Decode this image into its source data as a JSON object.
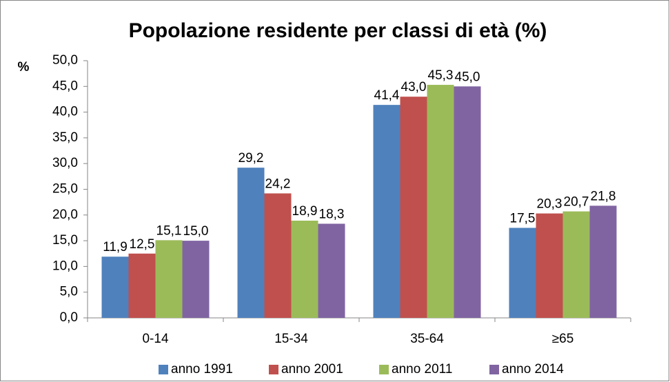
{
  "chart_data": {
    "type": "bar",
    "title": "Popolazione residente per classi di età (%)",
    "ylabel": "%",
    "categories": [
      "0-14",
      "15-34",
      "35-64",
      "≥65"
    ],
    "series": [
      {
        "name": "anno 1991",
        "color": "#4f81bd",
        "values": [
          11.9,
          29.2,
          41.4,
          17.5
        ],
        "value_labels": [
          "11,9",
          "29,2",
          "41,4",
          "17,5"
        ]
      },
      {
        "name": "anno 2001",
        "color": "#c0504d",
        "values": [
          12.5,
          24.2,
          43.0,
          20.3
        ],
        "value_labels": [
          "12,5",
          "24,2",
          "43,0",
          "20,3"
        ]
      },
      {
        "name": "anno 2011",
        "color": "#9bbb59",
        "values": [
          15.1,
          18.9,
          45.3,
          20.7
        ],
        "value_labels": [
          "15,1",
          "18,9",
          "45,3",
          "20,7"
        ]
      },
      {
        "name": "anno 2014",
        "color": "#8064a2",
        "values": [
          15.0,
          18.3,
          45.0,
          21.8
        ],
        "value_labels": [
          "15,0",
          "18,3",
          "45,0",
          "21,8"
        ]
      }
    ],
    "ylim": [
      0,
      50
    ],
    "yticks": [
      {
        "value": 0,
        "label": "0,0"
      },
      {
        "value": 5,
        "label": "5,0"
      },
      {
        "value": 10,
        "label": "10,0"
      },
      {
        "value": 15,
        "label": "15,0"
      },
      {
        "value": 20,
        "label": "20,0"
      },
      {
        "value": 25,
        "label": "25,0"
      },
      {
        "value": 30,
        "label": "30,0"
      },
      {
        "value": 35,
        "label": "35,0"
      },
      {
        "value": 40,
        "label": "40,0"
      },
      {
        "value": 45,
        "label": "45,0"
      },
      {
        "value": 50,
        "label": "50,0"
      }
    ],
    "grid": false,
    "legend": "bottom"
  }
}
